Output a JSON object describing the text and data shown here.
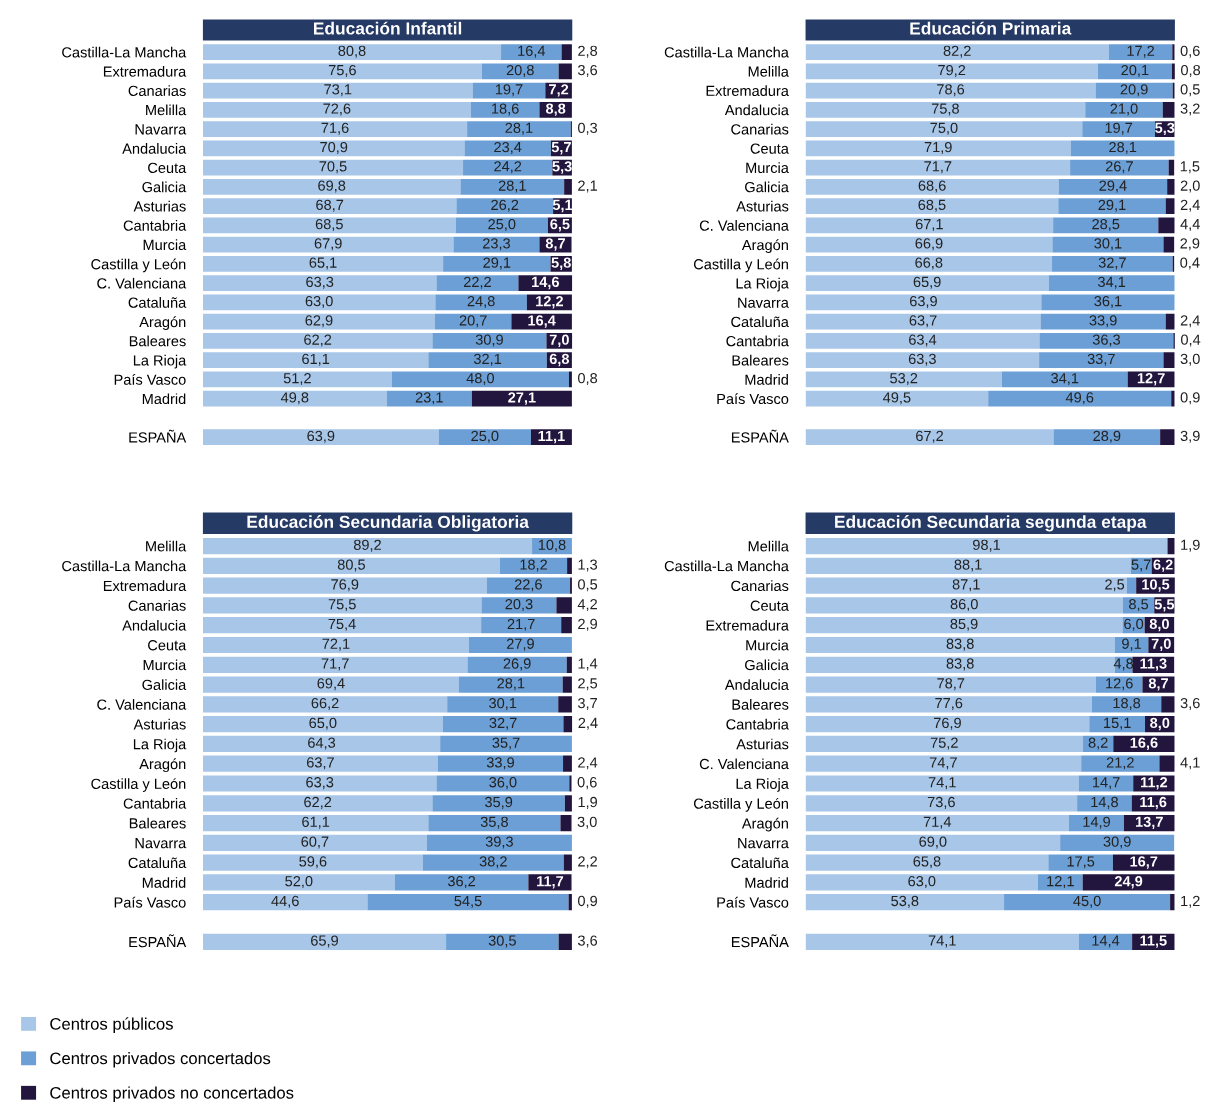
{
  "chart_data": [
    {
      "type": "bar",
      "orientation": "horizontal",
      "stacked": true,
      "tick_labels": "y",
      "title": "Educación Infantil",
      "categories": [
        "Castilla-La Mancha",
        "Extremadura",
        "Canarias",
        "Melilla",
        "Navarra",
        "Andalucia",
        "Ceuta",
        "Galicia",
        "Asturias",
        "Cantabria",
        "Murcia",
        "Castilla y León",
        "C. Valenciana",
        "Cataluña",
        "Aragón",
        "Baleares",
        "La Rioja",
        "País Vasco",
        "Madrid",
        null,
        "ESPAÑA"
      ],
      "series": [
        {
          "color": "#a7c6e8",
          "values": [
            80.8,
            75.6,
            73.1,
            72.6,
            71.6,
            70.9,
            70.5,
            69.8,
            68.7,
            68.5,
            67.9,
            65.1,
            63.3,
            63.0,
            62.9,
            62.2,
            61.1,
            51.2,
            49.8,
            null,
            63.9
          ],
          "value_labels": [
            "80,8",
            "75,6",
            "73,1",
            "72,6",
            "71,6",
            "70,9",
            "70,5",
            "69,8",
            "68,7",
            "68,5",
            "67,9",
            "65,1",
            "63,3",
            "63,0",
            "62,9",
            "62,2",
            "61,1",
            "51,2",
            "49,8",
            null,
            "63,9"
          ]
        },
        {
          "color": "#6b9fd5",
          "values": [
            16.4,
            20.8,
            19.7,
            18.6,
            28.1,
            23.4,
            24.2,
            28.1,
            26.2,
            25.0,
            23.3,
            29.1,
            22.2,
            24.8,
            20.7,
            30.9,
            32.1,
            48.0,
            23.1,
            null,
            25.0
          ],
          "value_labels": [
            "16,4",
            "20,8",
            "19,7",
            "18,6",
            "28,1",
            "23,4",
            "24,2",
            "28,1",
            "26,2",
            "25,0",
            "23,3",
            "29,1",
            "22,2",
            "24,8",
            "20,7",
            "30,9",
            "32,1",
            "48,0",
            "23,1",
            null,
            "25,0"
          ]
        },
        {
          "color": "#22163f",
          "values": [
            2.8,
            3.6,
            7.2,
            8.8,
            0.3,
            5.7,
            5.3,
            2.1,
            5.1,
            6.5,
            8.7,
            5.8,
            14.6,
            12.2,
            16.4,
            7.0,
            6.8,
            0.8,
            27.1,
            null,
            11.1
          ],
          "value_labels": [
            "2,8",
            "3,6",
            "7,2",
            "8,8",
            "0,3",
            "5,7",
            "5,3",
            "2,1",
            "5,1",
            "6,5",
            "8,7",
            "5,8",
            "14,6",
            "12,2",
            "16,4",
            "7,0",
            "6,8",
            "0,8",
            "27,1",
            null,
            "11,1"
          ]
        }
      ]
    },
    {
      "type": "bar",
      "orientation": "horizontal",
      "stacked": true,
      "tick_labels": "y",
      "title": "Educación Primaria",
      "categories": [
        "Castilla-La Mancha",
        "Melilla",
        "Extremadura",
        "Andalucia",
        "Canarias",
        "Ceuta",
        "Murcia",
        "Galicia",
        "Asturias",
        "C. Valenciana",
        "Aragón",
        "Castilla y León",
        "La Rioja",
        "Navarra",
        "Cataluña",
        "Cantabria",
        "Baleares",
        "Madrid",
        "País Vasco",
        null,
        "ESPAÑA"
      ],
      "series": [
        {
          "color": "#a7c6e8",
          "values": [
            82.2,
            79.2,
            78.6,
            75.8,
            75.0,
            71.9,
            71.7,
            68.6,
            68.5,
            67.1,
            66.9,
            66.8,
            65.9,
            63.9,
            63.7,
            63.4,
            63.3,
            53.2,
            49.5,
            null,
            67.2
          ],
          "value_labels": [
            "82,2",
            "79,2",
            "78,6",
            "75,8",
            "75,0",
            "71,9",
            "71,7",
            "68,6",
            "68,5",
            "67,1",
            "66,9",
            "66,8",
            "65,9",
            "63,9",
            "63,7",
            "63,4",
            "63,3",
            "53,2",
            "49,5",
            null,
            "67,2"
          ]
        },
        {
          "color": "#6b9fd5",
          "values": [
            17.2,
            20.1,
            20.9,
            21.0,
            19.7,
            28.1,
            26.7,
            29.4,
            29.1,
            28.5,
            30.1,
            32.7,
            34.1,
            36.1,
            33.9,
            36.3,
            33.7,
            34.1,
            49.6,
            null,
            28.9
          ],
          "value_labels": [
            "17,2",
            "20,1",
            "20,9",
            "21,0",
            "19,7",
            "28,1",
            "26,7",
            "29,4",
            "29,1",
            "28,5",
            "30,1",
            "32,7",
            "34,1",
            "36,1",
            "33,9",
            "36,3",
            "33,7",
            "34,1",
            "49,6",
            null,
            "28,9"
          ]
        },
        {
          "color": "#22163f",
          "values": [
            0.6,
            0.8,
            0.5,
            3.2,
            5.3,
            null,
            1.5,
            2.0,
            2.4,
            4.4,
            2.9,
            0.4,
            null,
            null,
            2.4,
            0.4,
            3.0,
            12.7,
            0.9,
            null,
            3.9
          ],
          "value_labels": [
            "0,6",
            "0,8",
            "0,5",
            "3,2",
            "5,3",
            null,
            "1,5",
            "2,0",
            "2,4",
            "4,4",
            "2,9",
            "0,4",
            null,
            null,
            "2,4",
            "0,4",
            "3,0",
            "12,7",
            "0,9",
            null,
            "3,9"
          ]
        }
      ]
    },
    {
      "type": "bar",
      "orientation": "horizontal",
      "stacked": true,
      "tick_labels": "y",
      "title": "Educación Secundaria Obligatoria",
      "categories": [
        "Melilla",
        "Castilla-La Mancha",
        "Extremadura",
        "Canarias",
        "Andalucia",
        "Ceuta",
        "Murcia",
        "Galicia",
        "C. Valenciana",
        "Asturias",
        "La Rioja",
        "Aragón",
        "Castilla y León",
        "Cantabria",
        "Baleares",
        "Navarra",
        "Cataluña",
        "Madrid",
        "País Vasco",
        null,
        "ESPAÑA"
      ],
      "series": [
        {
          "color": "#a7c6e8",
          "values": [
            89.2,
            80.5,
            76.9,
            75.5,
            75.4,
            72.1,
            71.7,
            69.4,
            66.2,
            65.0,
            64.3,
            63.7,
            63.3,
            62.2,
            61.1,
            60.7,
            59.6,
            52.0,
            44.6,
            null,
            65.9
          ],
          "value_labels": [
            "89,2",
            "80,5",
            "76,9",
            "75,5",
            "75,4",
            "72,1",
            "71,7",
            "69,4",
            "66,2",
            "65,0",
            "64,3",
            "63,7",
            "63,3",
            "62,2",
            "61,1",
            "60,7",
            "59,6",
            "52,0",
            "44,6",
            null,
            "65,9"
          ]
        },
        {
          "color": "#6b9fd5",
          "values": [
            10.8,
            18.2,
            22.6,
            20.3,
            21.7,
            27.9,
            26.9,
            28.1,
            30.1,
            32.7,
            35.7,
            33.9,
            36.0,
            35.9,
            35.8,
            39.3,
            38.2,
            36.2,
            54.5,
            null,
            30.5
          ],
          "value_labels": [
            "10,8",
            "18,2",
            "22,6",
            "20,3",
            "21,7",
            "27,9",
            "26,9",
            "28,1",
            "30,1",
            "32,7",
            "35,7",
            "33,9",
            "36,0",
            "35,9",
            "35,8",
            "39,3",
            "38,2",
            "36,2",
            "54,5",
            null,
            "30,5"
          ]
        },
        {
          "color": "#22163f",
          "values": [
            null,
            1.3,
            0.5,
            4.2,
            2.9,
            null,
            1.4,
            2.5,
            3.7,
            2.4,
            null,
            2.4,
            0.6,
            1.9,
            3.0,
            null,
            2.2,
            11.7,
            0.9,
            null,
            3.6
          ],
          "value_labels": [
            null,
            "1,3",
            "0,5",
            "4,2",
            "2,9",
            null,
            "1,4",
            "2,5",
            "3,7",
            "2,4",
            null,
            "2,4",
            "0,6",
            "1,9",
            "3,0",
            null,
            "2,2",
            "11,7",
            "0,9",
            null,
            "3,6"
          ]
        }
      ]
    },
    {
      "type": "bar",
      "orientation": "horizontal",
      "stacked": true,
      "tick_labels": "y",
      "title": "Educación Secundaria segunda etapa",
      "legend": "bottom left",
      "categories": [
        "Melilla",
        "Castilla-La Mancha",
        "Canarias",
        "Ceuta",
        "Extremadura",
        "Murcia",
        "Galicia",
        "Andalucia",
        "Baleares",
        "Cantabria",
        "Asturias",
        "C. Valenciana",
        "La Rioja",
        "Castilla y León",
        "Aragón",
        "Navarra",
        "Cataluña",
        "Madrid",
        "País Vasco",
        null,
        "ESPAÑA"
      ],
      "series": [
        {
          "name": "Centros públicos",
          "color": "#a7c6e8",
          "values": [
            98.1,
            88.1,
            87.1,
            86.0,
            85.9,
            83.8,
            83.8,
            78.7,
            77.6,
            76.9,
            75.2,
            74.7,
            74.1,
            73.6,
            71.4,
            69.0,
            65.8,
            63.0,
            53.8,
            null,
            74.1
          ],
          "value_labels": [
            "98,1",
            "88,1",
            "87,1",
            "86,0",
            "85,9",
            "83,8",
            "83,8",
            "78,7",
            "77,6",
            "76,9",
            "75,2",
            "74,7",
            "74,1",
            "73,6",
            "71,4",
            "69,0",
            "65,8",
            "63,0",
            "53,8",
            null,
            "74,1"
          ]
        },
        {
          "name": "Centros privados concertados",
          "color": "#6b9fd5",
          "values": [
            null,
            5.7,
            2.5,
            8.5,
            6.0,
            9.1,
            4.8,
            12.6,
            18.8,
            15.1,
            8.2,
            21.2,
            14.7,
            14.8,
            14.9,
            30.9,
            17.5,
            12.1,
            45.0,
            null,
            14.4
          ],
          "value_labels": [
            null,
            "5,7",
            "2,5",
            "8,5",
            "6,0",
            "9,1",
            "4,8",
            "12,6",
            "18,8",
            "15,1",
            "8,2",
            "21,2",
            "14,7",
            "14,8",
            "14,9",
            "30,9",
            "17,5",
            "12,1",
            "45,0",
            null,
            "14,4"
          ]
        },
        {
          "name": "Centros privados no concertados",
          "color": "#22163f",
          "values": [
            1.9,
            6.2,
            10.5,
            5.5,
            8.0,
            7.0,
            11.3,
            8.7,
            3.6,
            8.0,
            16.6,
            4.1,
            11.2,
            11.6,
            13.7,
            null,
            16.7,
            24.9,
            1.2,
            null,
            11.5
          ],
          "value_labels": [
            "1,9",
            "6,2",
            "10,5",
            "5,5",
            "8,0",
            "7,0",
            "11,3",
            "8,7",
            "3,6",
            "8,0",
            "16,6",
            "4,1",
            "11,2",
            "11,6",
            "13,7",
            null,
            "16,7",
            "24,9",
            "1,2",
            null,
            "11,5"
          ]
        }
      ]
    }
  ]
}
